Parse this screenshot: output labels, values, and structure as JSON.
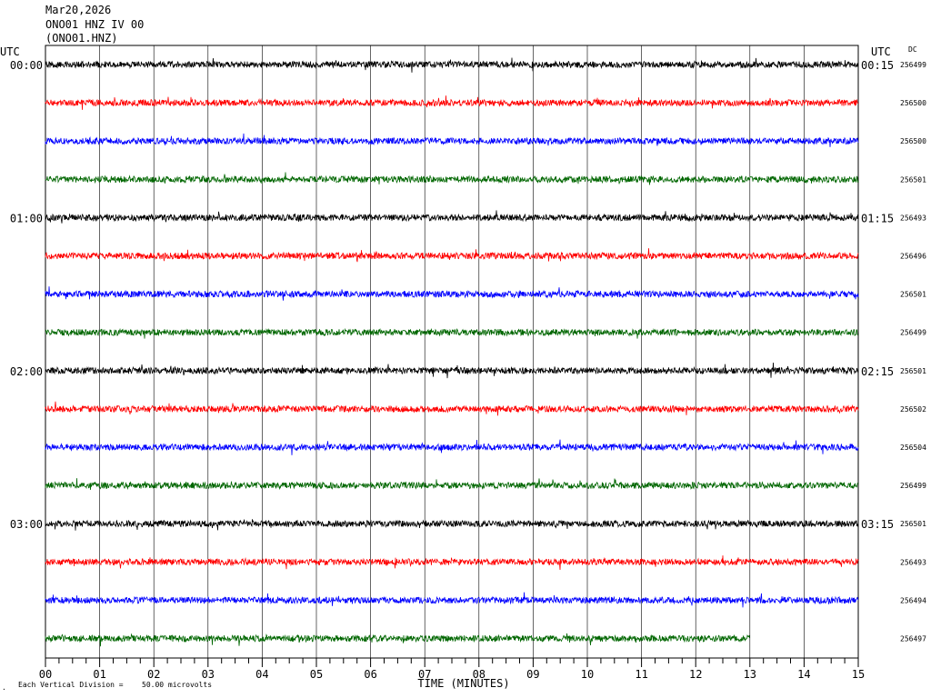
{
  "header": {
    "date": "Mar20,2026",
    "station_line": "ONO01 HNZ IV 00",
    "station_code": "(ONO01.HNZ)"
  },
  "chart_data": {
    "type": "line",
    "title": "",
    "left_axis_label": "UTC",
    "right_axis_label": "UTC",
    "dc_label": "DC",
    "xlabel": "TIME (MINUTES)",
    "xlim": [
      0,
      15
    ],
    "x_ticks": [
      "00",
      "01",
      "02",
      "03",
      "04",
      "05",
      "06",
      "07",
      "08",
      "09",
      "10",
      "11",
      "12",
      "13",
      "14",
      "15"
    ],
    "grid": true,
    "trace_colors": [
      "#000000",
      "#ff0000",
      "#0000ff",
      "#006600"
    ],
    "hour_labels_left": [
      "00:00",
      "01:00",
      "02:00",
      "03:00"
    ],
    "hour_labels_right": [
      "00:15",
      "01:15",
      "02:15",
      "03:15"
    ],
    "dc_values": [
      "256499",
      "256500",
      "256500",
      "256501",
      "256493",
      "256496",
      "256501",
      "256499",
      "256501",
      "256502",
      "256504",
      "256499",
      "256501",
      "256493",
      "256494",
      "256497"
    ],
    "last_trace_end_minute": 13,
    "footer": {
      "vertical_division_label": "Each Vertical Division =",
      "vertical_division_value": "50.00 microvolts"
    }
  }
}
